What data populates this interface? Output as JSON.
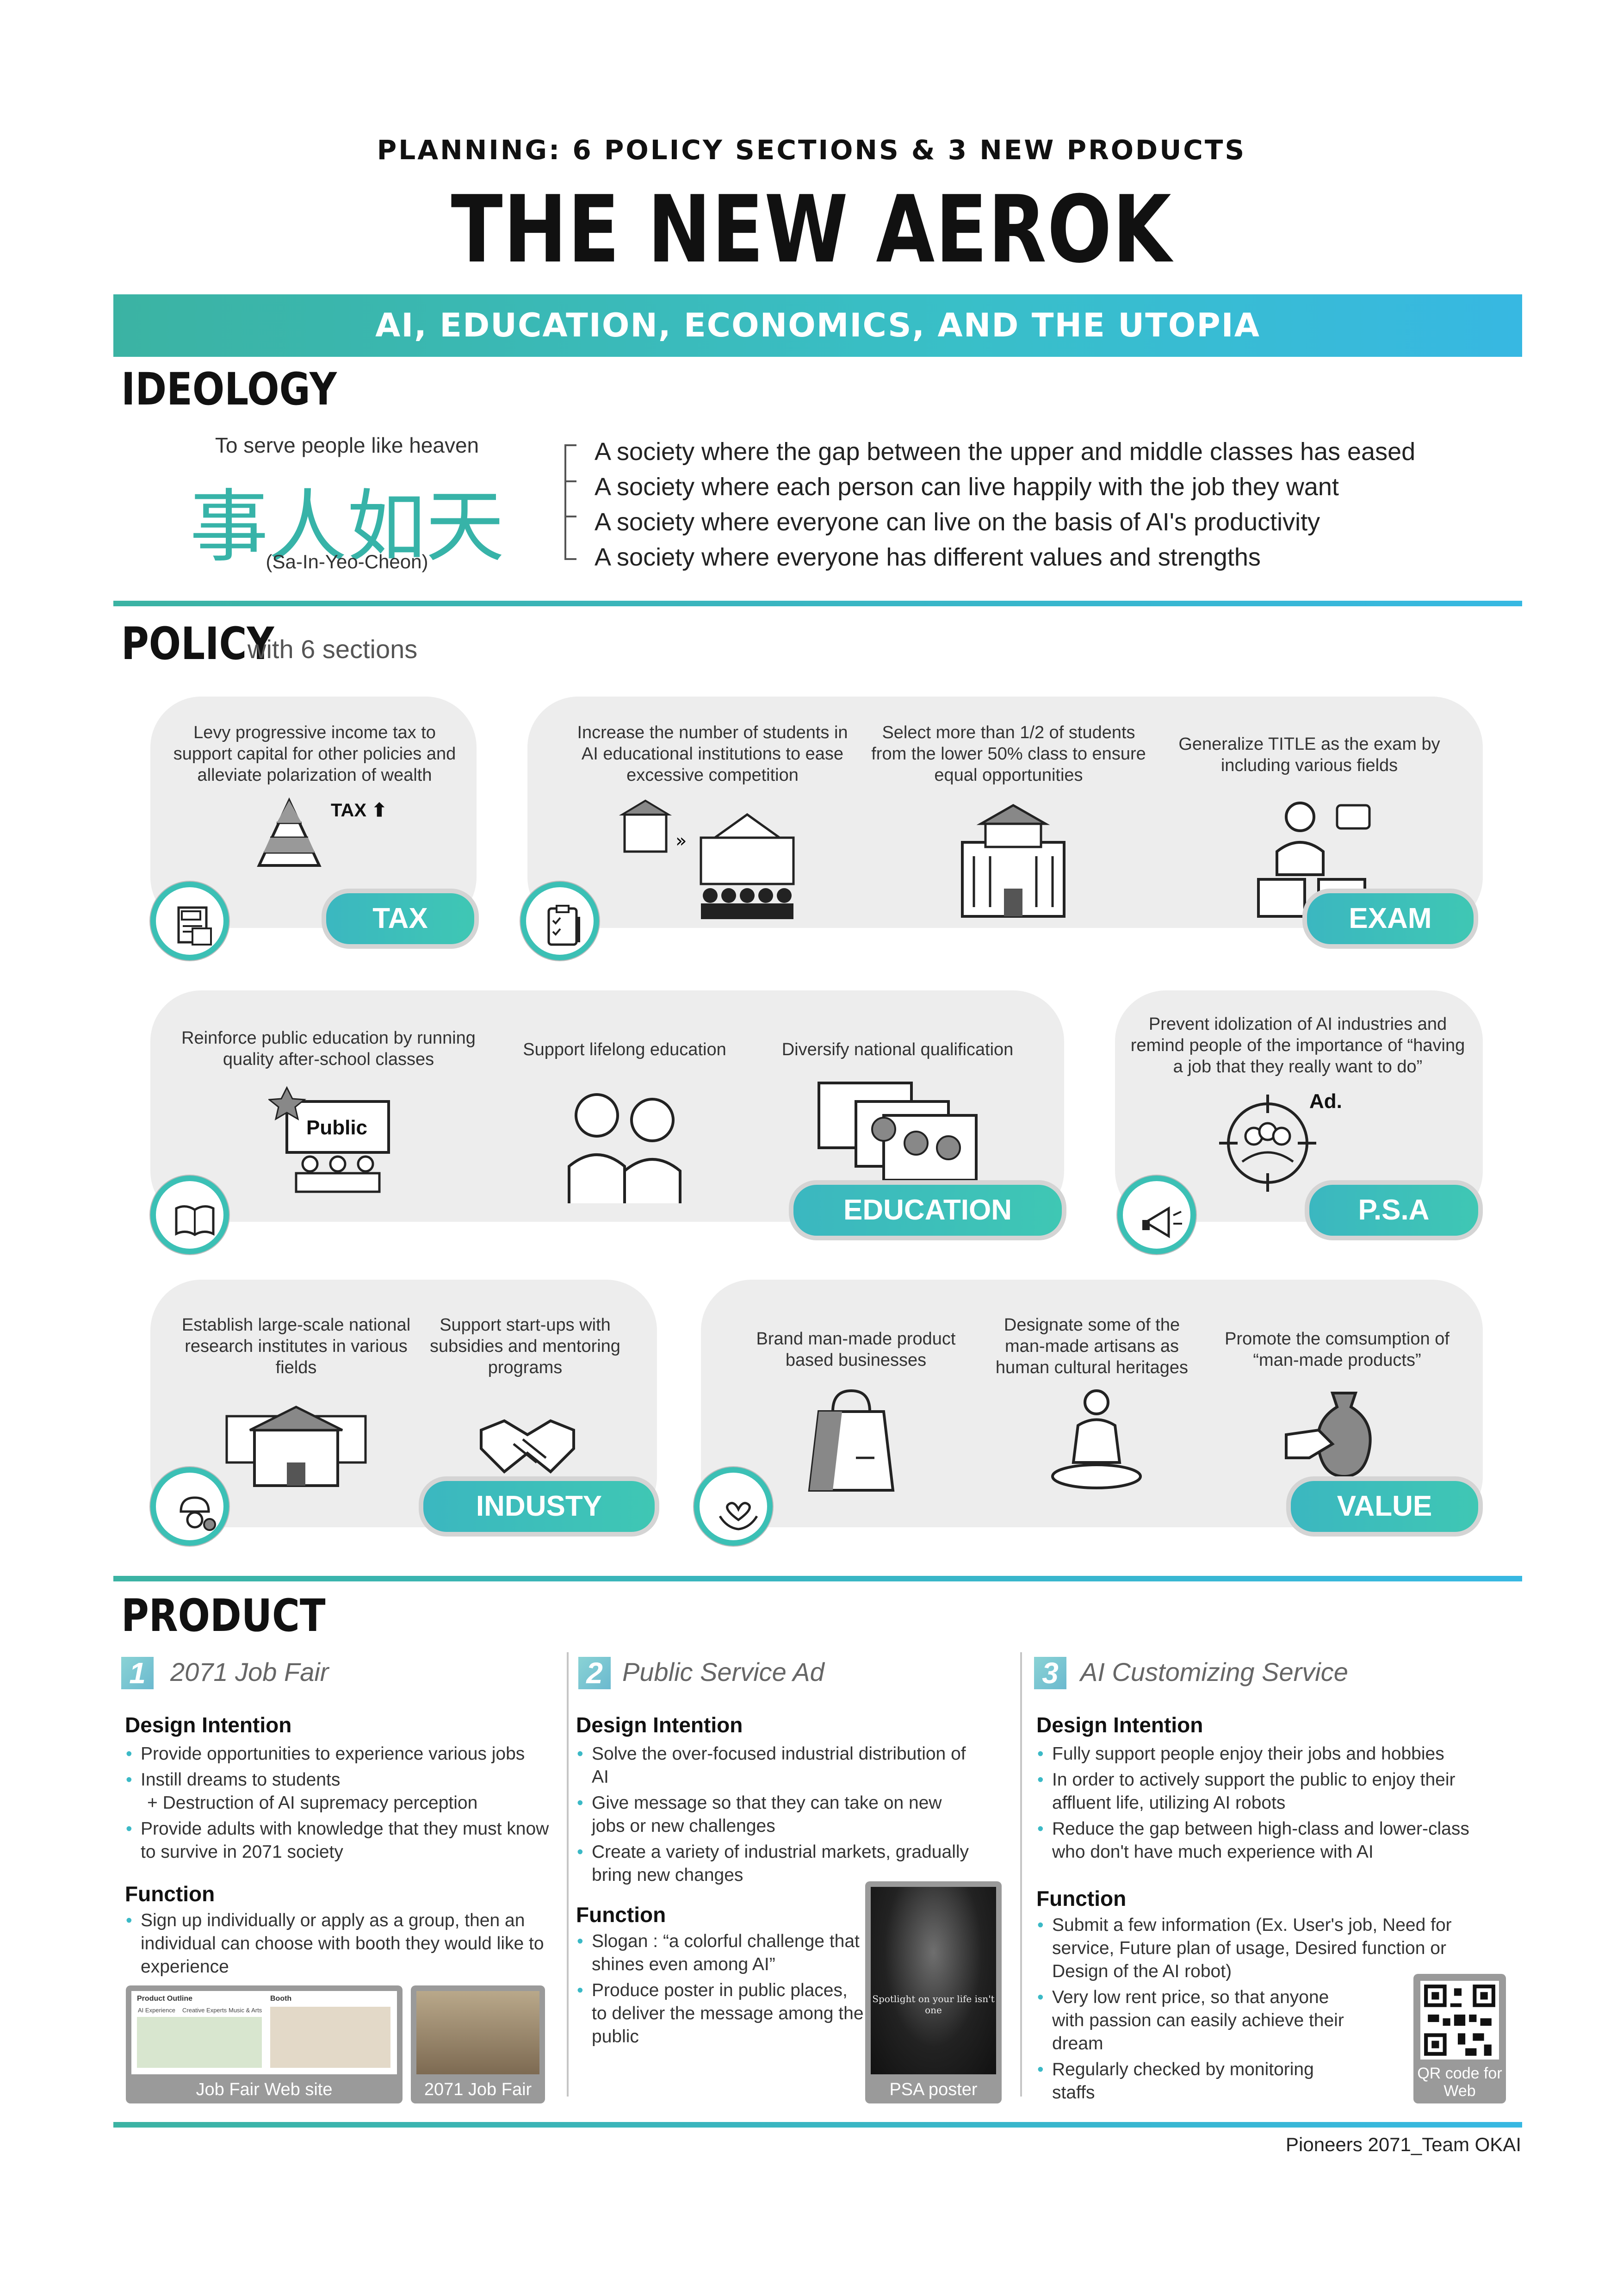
{
  "header": {
    "subtitle": "PLANNING: 6 POLICY SECTIONS & 3 NEW PRODUCTS",
    "title": "THE NEW AEROK",
    "banner": "AI, EDUCATION, ECONOMICS, AND THE UTOPIA"
  },
  "ideology": {
    "heading": "IDEOLOGY",
    "motto": "To serve people like heaven",
    "hanja": "事人如天",
    "romanization": "(Sa-In-Yeo-Cheon)",
    "items": [
      "A society where the gap between the upper and middle classes has eased",
      "A society where each person can live happily with the job they want",
      "A society where everyone can live on the basis of AI's productivity",
      "A society where everyone has different values and strengths"
    ]
  },
  "policy": {
    "heading": "POLICY",
    "subheading": "with 6 sections",
    "tax": {
      "label": "TAX",
      "text": "Levy progressive income tax to support capital for other policies and alleviate polarization of wealth",
      "icon_text": "TAX"
    },
    "exam": {
      "label": "EXAM",
      "texts": [
        "Increase the number of students in AI educational institutions to ease excessive competition",
        "Select more than 1/2 of students from the lower 50% class to ensure equal opportunities",
        "Generalize TITLE as the exam by including various fields"
      ]
    },
    "education": {
      "label": "EDUCATION",
      "texts": [
        "Reinforce public education by running quality after-school classes",
        "Support lifelong education",
        "Diversify national qualification"
      ],
      "board_text": "Public"
    },
    "psa": {
      "label": "P.S.A",
      "text": "Prevent idolization of AI industries and remind people of the importance of “having a job that they really want to do”",
      "icon_text": "Ad."
    },
    "industry": {
      "label": "INDUSTY",
      "texts": [
        "Establish large-scale national research institutes in various fields",
        "Support start-ups with subsidies and mentoring programs"
      ]
    },
    "value": {
      "label": "VALUE",
      "texts": [
        "Brand man-made product based businesses",
        "Designate some of the man-made artisans as human cultural heritages",
        "Promote the comsumption of “man-made products”"
      ]
    }
  },
  "product": {
    "heading": "PRODUCT",
    "design_label": "Design Intention",
    "function_label": "Function",
    "items": [
      {
        "num": "1",
        "title": "2071 Job Fair",
        "design": [
          "Provide opportunities to experience various jobs",
          "Instill dreams to students",
          "Provide adults with knowledge that they must know to survive in 2071 society"
        ],
        "design_extra": "+ Destruction of AI supremacy perception",
        "function": [
          "Sign up individually or apply as a group, then an individual can choose with booth they would like to experience"
        ],
        "thumbs": [
          "Job Fair Web site",
          "2071 Job Fair"
        ],
        "web_mock_title": "Product Outline",
        "booth_label": "Booth",
        "web_mock_cols": [
          "AI Experience",
          "Creative Experts",
          "Music & Arts"
        ]
      },
      {
        "num": "2",
        "title": "Public Service Ad",
        "design": [
          "Solve the over-focused industrial distribution of AI",
          "Give message so that they can take on new jobs or new challenges",
          "Create a variety of industrial markets, gradually bring new changes"
        ],
        "function": [
          "Slogan : “a colorful challenge that shines even among AI”",
          "Produce poster in public places, to deliver the message among the public"
        ],
        "thumbs": [
          "PSA poster"
        ],
        "poster_text": "Spotlight on your life isn't one"
      },
      {
        "num": "3",
        "title": "AI Customizing Service",
        "design": [
          "Fully support people enjoy their jobs and hobbies",
          "In order to actively support the public to enjoy their affluent life, utilizing AI robots",
          "Reduce the gap between high-class and lower-class who don't have much experience with AI"
        ],
        "function": [
          "Submit a few information (Ex. User's job, Need for service, Future plan of usage, Desired function or Design of the AI robot)",
          "Very low rent price, so that anyone with passion can easily achieve their dream",
          "Regularly checked by monitoring staffs"
        ],
        "thumbs": [
          "QR code for Web"
        ]
      }
    ]
  },
  "footer": "Pioneers 2071_Team OKAI",
  "colors": {
    "accent_teal": "#3bb3a3",
    "accent_blue": "#37b8e2",
    "box_gray": "#ededed"
  }
}
